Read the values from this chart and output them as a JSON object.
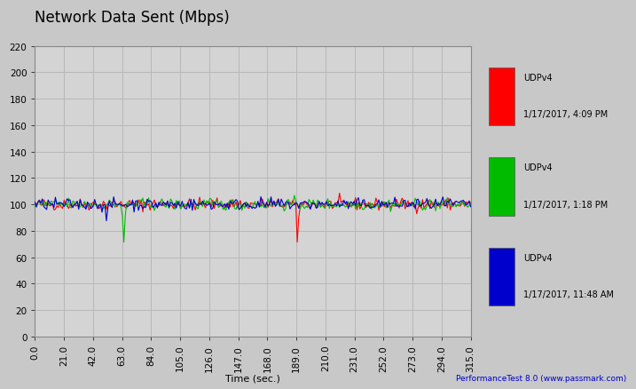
{
  "title": "Network Data Sent (Mbps)",
  "xlabel": "Time (sec.)",
  "ylabel": "",
  "watermark": "PerformanceTest 8.0 (www.passmark.com)",
  "xlim": [
    0.0,
    315.0
  ],
  "ylim": [
    0,
    220
  ],
  "yticks": [
    0,
    20,
    40,
    60,
    80,
    100,
    120,
    140,
    160,
    180,
    200,
    220
  ],
  "xticks": [
    0.0,
    21.0,
    42.0,
    63.0,
    84.0,
    105.0,
    126.0,
    147.0,
    168.0,
    189.0,
    210.0,
    231.0,
    252.0,
    273.0,
    294.0,
    315.0
  ],
  "legend": [
    {
      "label": "UDPv4\n1/17/2017, 4:09 PM",
      "color": "#ff0000"
    },
    {
      "label": "UDPv4\n1/17/2017, 1:18 PM",
      "color": "#00bb00"
    },
    {
      "label": "UDPv4\n1/17/2017, 11:48 AM",
      "color": "#0000cc"
    }
  ],
  "bg_color": "#c8c8c8",
  "plot_bg_color": "#d4d4d4",
  "grid_color": "#b8b8b8",
  "title_fontsize": 12,
  "axis_fontsize": 8,
  "tick_fontsize": 7.5
}
